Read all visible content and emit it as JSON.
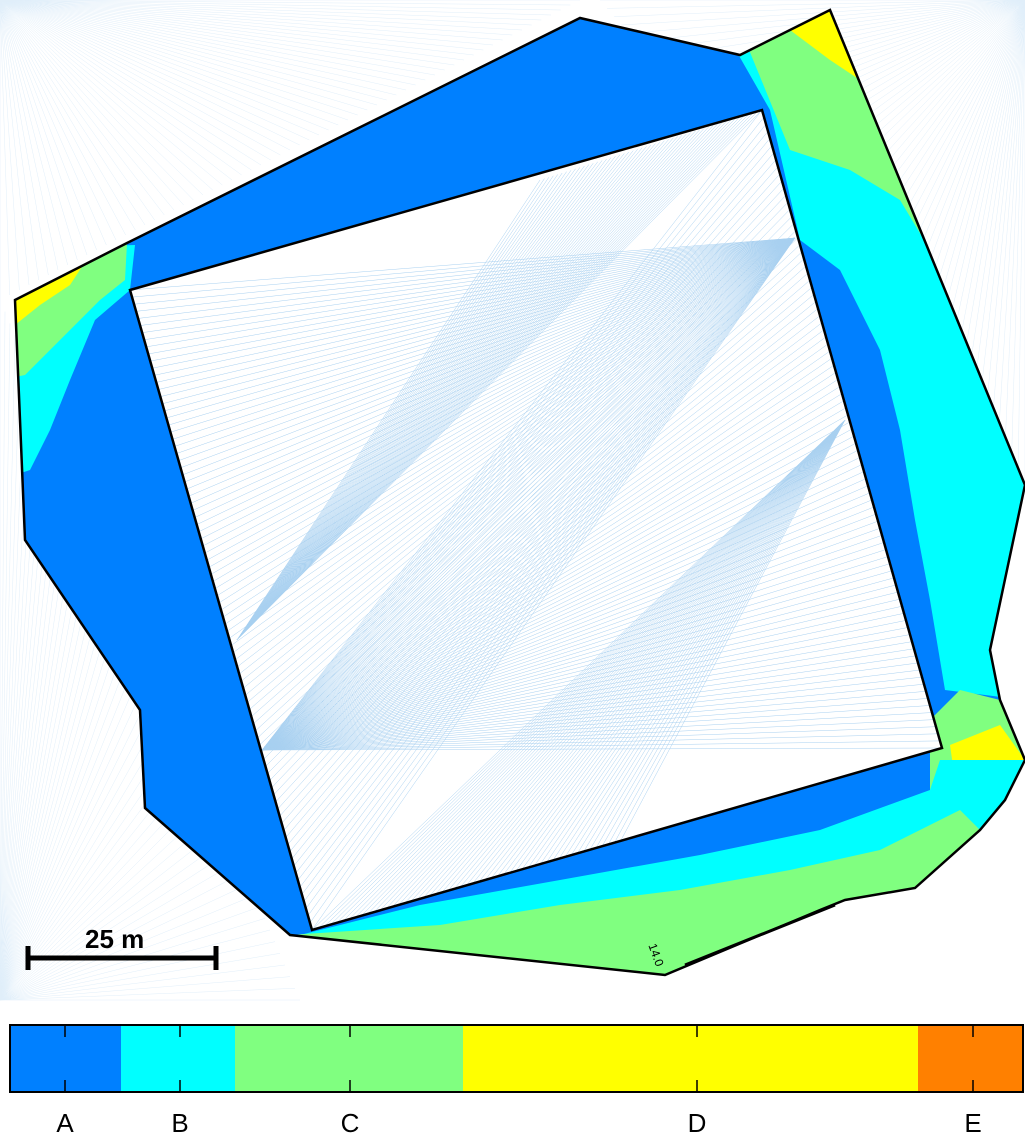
{
  "scale_bar": {
    "label": "25 m"
  },
  "legend": {
    "classes": [
      {
        "label": "A",
        "color": "#0080ff"
      },
      {
        "label": "B",
        "color": "#00ffff"
      },
      {
        "label": "C",
        "color": "#80ff80"
      },
      {
        "label": "D",
        "color": "#ffff00"
      },
      {
        "label": "E",
        "color": "#ff8000"
      }
    ]
  },
  "map": {
    "background_fan_color": "#a8d0f0",
    "outline_color": "#000000",
    "annotation_text": "14.0"
  }
}
